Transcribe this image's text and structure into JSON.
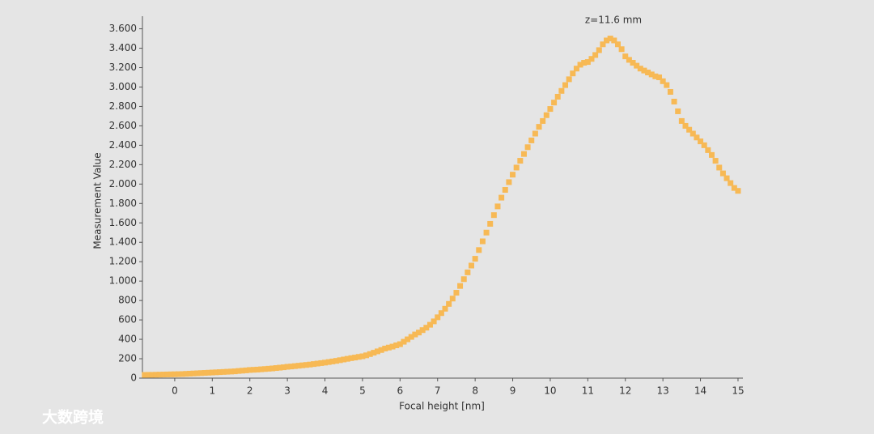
{
  "chart_data": {
    "type": "scatter",
    "x_label": "Focal height [nm]",
    "y_label": "Measurement Value",
    "annotation": "z=11.6 mm",
    "watermark": "大数跨境",
    "xlim": [
      -0.86,
      15.13
    ],
    "ylim": [
      0,
      3730
    ],
    "xticks": [
      0,
      1,
      2,
      3,
      4,
      5,
      6,
      7,
      8,
      9,
      10,
      11,
      12,
      13,
      14,
      15
    ],
    "yticks": [
      0,
      200,
      400,
      600,
      800,
      {
        "value": 1000,
        "label": "1.000"
      },
      {
        "value": 1200,
        "label": "1.200"
      },
      {
        "value": 1400,
        "label": "1.400"
      },
      {
        "value": 1600,
        "label": "1.600"
      },
      {
        "value": 1800,
        "label": "1.800"
      },
      {
        "value": 2000,
        "label": "2.000"
      },
      {
        "value": 2200,
        "label": "2.200"
      },
      {
        "value": 2400,
        "label": "2.400"
      },
      {
        "value": 2600,
        "label": "2.600"
      },
      {
        "value": 2800,
        "label": "2.800"
      },
      {
        "value": 3000,
        "label": "3.000"
      },
      {
        "value": 3200,
        "label": "3.200"
      },
      {
        "value": 3400,
        "label": "3.400"
      },
      {
        "value": 3600,
        "label": "3.600"
      }
    ],
    "series": [
      {
        "color": "#f7b955",
        "x": [
          -0.8,
          -0.7,
          -0.6,
          -0.5,
          -0.4,
          -0.3,
          -0.2,
          -0.1,
          0,
          0.1,
          0.2,
          0.3,
          0.4,
          0.5,
          0.6,
          0.7,
          0.8,
          0.9,
          1,
          1.1,
          1.2,
          1.3,
          1.4,
          1.5,
          1.6,
          1.7,
          1.8,
          1.9,
          2,
          2.1,
          2.2,
          2.3,
          2.4,
          2.5,
          2.6,
          2.7,
          2.8,
          2.9,
          3,
          3.1,
          3.2,
          3.3,
          3.4,
          3.5,
          3.6,
          3.7,
          3.8,
          3.9,
          4,
          4.1,
          4.2,
          4.3,
          4.4,
          4.5,
          4.6,
          4.7,
          4.8,
          4.9,
          5,
          5.1,
          5.2,
          5.3,
          5.4,
          5.5,
          5.6,
          5.7,
          5.8,
          5.9,
          6,
          6.1,
          6.2,
          6.3,
          6.4,
          6.5,
          6.6,
          6.7,
          6.8,
          6.9,
          7,
          7.1,
          7.2,
          7.3,
          7.4,
          7.5,
          7.6,
          7.7,
          7.8,
          7.9,
          8,
          8.1,
          8.2,
          8.3,
          8.4,
          8.5,
          8.6,
          8.7,
          8.8,
          8.9,
          9,
          9.1,
          9.2,
          9.3,
          9.4,
          9.5,
          9.6,
          9.7,
          9.8,
          9.9,
          10,
          10.1,
          10.2,
          10.3,
          10.4,
          10.5,
          10.6,
          10.7,
          10.8,
          10.9,
          11,
          11.1,
          11.2,
          11.3,
          11.4,
          11.5,
          11.6,
          11.7,
          11.8,
          11.9,
          12,
          12.1,
          12.2,
          12.3,
          12.4,
          12.5,
          12.6,
          12.7,
          12.8,
          12.9,
          13,
          13.1,
          13.2,
          13.3,
          13.4,
          13.5,
          13.6,
          13.7,
          13.8,
          13.9,
          14,
          14.1,
          14.2,
          14.3,
          14.4,
          14.5,
          14.6,
          14.7,
          14.8,
          14.9,
          15
        ],
        "values": [
          33,
          34,
          34,
          35,
          36,
          37,
          38,
          39,
          40,
          41,
          42,
          44,
          46,
          48,
          50,
          52,
          54,
          56,
          58,
          60,
          62,
          64,
          66,
          68,
          70,
          74,
          77,
          80,
          84,
          86,
          88,
          91,
          94,
          97,
          100,
          104,
          108,
          112,
          117,
          120,
          124,
          128,
          132,
          136,
          140,
          145,
          150,
          155,
          160,
          166,
          172,
          178,
          185,
          192,
          199,
          206,
          212,
          219,
          225,
          235,
          248,
          262,
          276,
          290,
          305,
          315,
          325,
          338,
          350,
          375,
          400,
          425,
          450,
          470,
          495,
          520,
          550,
          585,
          627,
          670,
          715,
          765,
          820,
          880,
          950,
          1020,
          1090,
          1160,
          1230,
          1320,
          1410,
          1500,
          1590,
          1680,
          1770,
          1860,
          1940,
          2020,
          2097,
          2170,
          2240,
          2310,
          2380,
          2450,
          2520,
          2590,
          2650,
          2710,
          2774,
          2840,
          2900,
          2960,
          3020,
          3080,
          3140,
          3190,
          3230,
          3250,
          3258,
          3290,
          3330,
          3380,
          3440,
          3480,
          3500,
          3480,
          3440,
          3390,
          3316,
          3280,
          3250,
          3220,
          3190,
          3170,
          3150,
          3130,
          3110,
          3100,
          3060,
          3020,
          2950,
          2850,
          2750,
          2650,
          2600,
          2560,
          2520,
          2480,
          2440,
          2400,
          2350,
          2300,
          2240,
          2170,
          2110,
          2060,
          2010,
          1960,
          1930
        ]
      }
    ]
  }
}
